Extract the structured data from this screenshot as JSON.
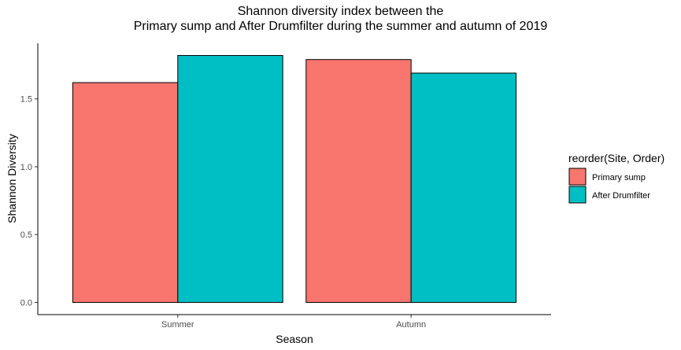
{
  "chart_data": {
    "type": "bar",
    "title_lines": [
      "Shannon diversity index between the",
      "Primary sump and After Drumfilter during the summer and autumn of 2019"
    ],
    "xlabel": "Season",
    "ylabel": "Shannon Diversity",
    "categories": [
      "Summer",
      "Autumn"
    ],
    "series": [
      {
        "name": "Primary sump",
        "color": "#F8766D",
        "values": [
          1.62,
          1.79
        ]
      },
      {
        "name": "After Drumfilter",
        "color": "#00BFC4",
        "values": [
          1.82,
          1.69
        ]
      }
    ],
    "yticks": [
      "0.0",
      "0.5",
      "1.0",
      "1.5"
    ],
    "ylim": [
      -0.09,
      1.91
    ],
    "grid": false,
    "legend": {
      "title": "reorder(Site, Order)",
      "placement": "right"
    }
  }
}
